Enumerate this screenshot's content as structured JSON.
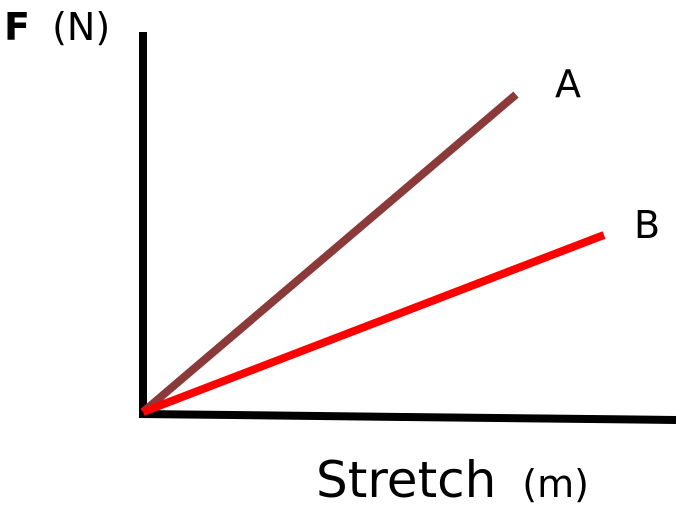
{
  "chart_data": {
    "type": "line",
    "title": "",
    "ylabel": {
      "symbol": "F",
      "unit": "(N)"
    },
    "xlabel": {
      "text": "Stretch",
      "unit": "(m)"
    },
    "grid": false,
    "legend": "none",
    "series": [
      {
        "name": "A",
        "color": "#8b3a3a",
        "start": [
          0,
          0
        ],
        "slope": 0.851
      },
      {
        "name": "B",
        "color": "#ff0000",
        "start": [
          0,
          0
        ],
        "slope": 0.384
      }
    ]
  }
}
